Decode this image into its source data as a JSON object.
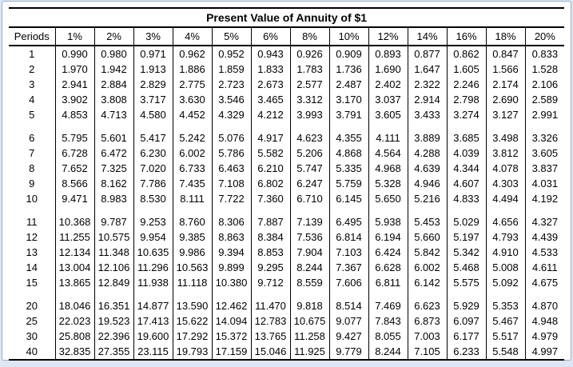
{
  "window": {
    "outer_background": "#dce7f3",
    "frame_border_color": "#9dadc4",
    "inner_background": "#ffffff",
    "line_color": "#000000"
  },
  "table": {
    "title": "Present Value of Annuity of $1",
    "columns": [
      "Periods",
      "1%",
      "2%",
      "3%",
      "4%",
      "5%",
      "6%",
      "8%",
      "10%",
      "12%",
      "14%",
      "16%",
      "18%",
      "20%"
    ],
    "groups": [
      [
        [
          "1",
          "0.990",
          "0.980",
          "0.971",
          "0.962",
          "0.952",
          "0.943",
          "0.926",
          "0.909",
          "0.893",
          "0.877",
          "0.862",
          "0.847",
          "0.833"
        ],
        [
          "2",
          "1.970",
          "1.942",
          "1.913",
          "1.886",
          "1.859",
          "1.833",
          "1.783",
          "1.736",
          "1.690",
          "1.647",
          "1.605",
          "1.566",
          "1.528"
        ],
        [
          "3",
          "2.941",
          "2.884",
          "2.829",
          "2.775",
          "2.723",
          "2.673",
          "2.577",
          "2.487",
          "2.402",
          "2.322",
          "2.246",
          "2.174",
          "2.106"
        ],
        [
          "4",
          "3.902",
          "3.808",
          "3.717",
          "3.630",
          "3.546",
          "3.465",
          "3.312",
          "3.170",
          "3.037",
          "2.914",
          "2.798",
          "2.690",
          "2.589"
        ],
        [
          "5",
          "4.853",
          "4.713",
          "4.580",
          "4.452",
          "4.329",
          "4.212",
          "3.993",
          "3.791",
          "3.605",
          "3.433",
          "3.274",
          "3.127",
          "2.991"
        ]
      ],
      [
        [
          "6",
          "5.795",
          "5.601",
          "5.417",
          "5.242",
          "5.076",
          "4.917",
          "4.623",
          "4.355",
          "4.111",
          "3.889",
          "3.685",
          "3.498",
          "3.326"
        ],
        [
          "7",
          "6.728",
          "6.472",
          "6.230",
          "6.002",
          "5.786",
          "5.582",
          "5.206",
          "4.868",
          "4.564",
          "4.288",
          "4.039",
          "3.812",
          "3.605"
        ],
        [
          "8",
          "7.652",
          "7.325",
          "7.020",
          "6.733",
          "6.463",
          "6.210",
          "5.747",
          "5.335",
          "4.968",
          "4.639",
          "4.344",
          "4.078",
          "3.837"
        ],
        [
          "9",
          "8.566",
          "8.162",
          "7.786",
          "7.435",
          "7.108",
          "6.802",
          "6.247",
          "5.759",
          "5.328",
          "4.946",
          "4.607",
          "4.303",
          "4.031"
        ],
        [
          "10",
          "9.471",
          "8.983",
          "8.530",
          "8.111",
          "7.722",
          "7.360",
          "6.710",
          "6.145",
          "5.650",
          "5.216",
          "4.833",
          "4.494",
          "4.192"
        ]
      ],
      [
        [
          "11",
          "10.368",
          "9.787",
          "9.253",
          "8.760",
          "8.306",
          "7.887",
          "7.139",
          "6.495",
          "5.938",
          "5.453",
          "5.029",
          "4.656",
          "4.327"
        ],
        [
          "12",
          "11.255",
          "10.575",
          "9.954",
          "9.385",
          "8.863",
          "8.384",
          "7.536",
          "6.814",
          "6.194",
          "5.660",
          "5.197",
          "4.793",
          "4.439"
        ],
        [
          "13",
          "12.134",
          "11.348",
          "10.635",
          "9.986",
          "9.394",
          "8.853",
          "7.904",
          "7.103",
          "6.424",
          "5.842",
          "5.342",
          "4.910",
          "4.533"
        ],
        [
          "14",
          "13.004",
          "12.106",
          "11.296",
          "10.563",
          "9.899",
          "9.295",
          "8.244",
          "7.367",
          "6.628",
          "6.002",
          "5.468",
          "5.008",
          "4.611"
        ],
        [
          "15",
          "13.865",
          "12.849",
          "11.938",
          "11.118",
          "10.380",
          "9.712",
          "8.559",
          "7.606",
          "6.811",
          "6.142",
          "5.575",
          "5.092",
          "4.675"
        ]
      ],
      [
        [
          "20",
          "18.046",
          "16.351",
          "14.877",
          "13.590",
          "12.462",
          "11.470",
          "9.818",
          "8.514",
          "7.469",
          "6.623",
          "5.929",
          "5.353",
          "4.870"
        ],
        [
          "25",
          "22.023",
          "19.523",
          "17.413",
          "15.622",
          "14.094",
          "12.783",
          "10.675",
          "9.077",
          "7.843",
          "6.873",
          "6.097",
          "5.467",
          "4.948"
        ],
        [
          "30",
          "25.808",
          "22.396",
          "19.600",
          "17.292",
          "15.372",
          "13.765",
          "11.258",
          "9.427",
          "8.055",
          "7.003",
          "6.177",
          "5.517",
          "4.979"
        ],
        [
          "40",
          "32.835",
          "27.355",
          "23.115",
          "19.793",
          "17.159",
          "15.046",
          "11.925",
          "9.779",
          "8.244",
          "7.105",
          "6.233",
          "5.548",
          "4.997"
        ]
      ]
    ]
  }
}
